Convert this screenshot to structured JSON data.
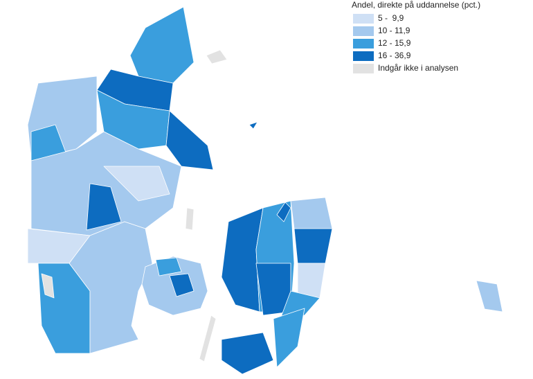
{
  "legend": {
    "title": "Andel, direkte på uddannelse (pct.)",
    "items": [
      {
        "label": "5 -  9,9",
        "color": "#cfe0f5"
      },
      {
        "label": "10 - 11,9",
        "color": "#a4c9ee"
      },
      {
        "label": "12 - 15,9",
        "color": "#3a9edd"
      },
      {
        "label": "16 - 36,9",
        "color": "#0d6cc0"
      },
      {
        "label": "Indgår ikke i analysen",
        "color": "#e2e2e2"
      }
    ]
  }
}
